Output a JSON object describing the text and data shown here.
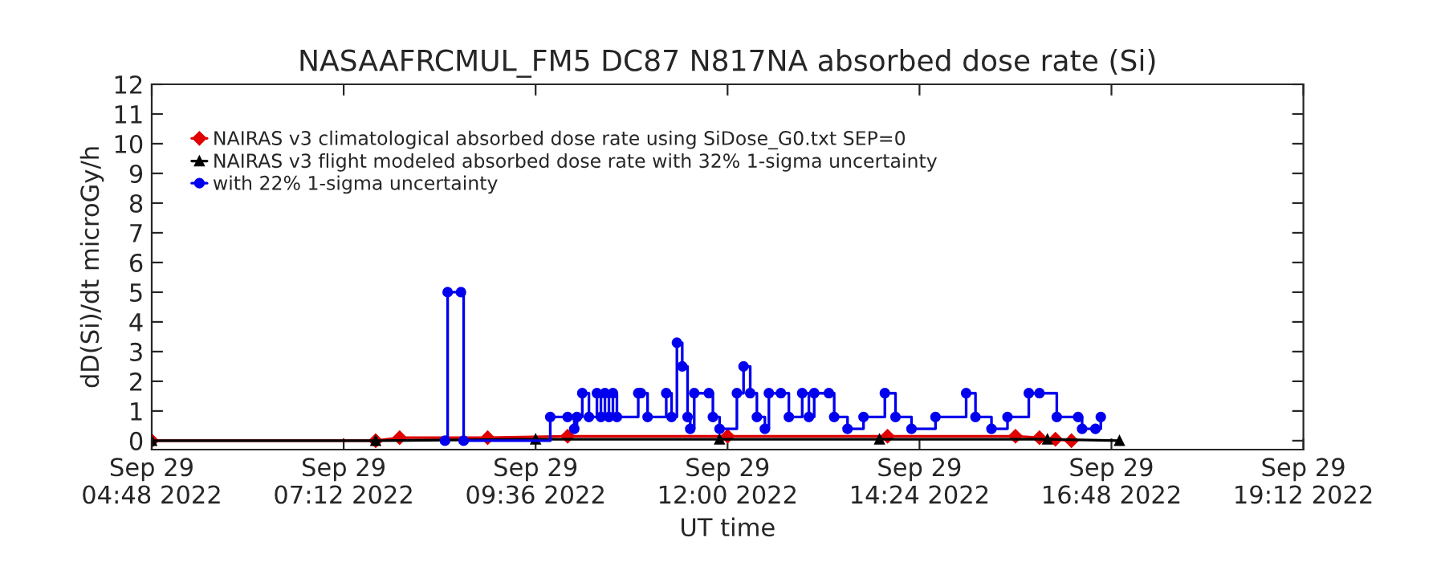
{
  "chart_data": {
    "type": "line",
    "title": "NASAAFRCMUL_FM5 DC87 N817NA absorbed dose rate (Si)",
    "xlabel": "UT time",
    "ylabel": "dD(Si)/dt microGy/h",
    "xlim": [
      "2022-09-29T04:48",
      "2022-09-29T19:12"
    ],
    "xticks": [
      {
        "value": "2022-09-29T04:48",
        "label": "Sep 29\n04:48 2022"
      },
      {
        "value": "2022-09-29T07:12",
        "label": "Sep 29\n07:12 2022"
      },
      {
        "value": "2022-09-29T09:36",
        "label": "Sep 29\n09:36 2022"
      },
      {
        "value": "2022-09-29T12:00",
        "label": "Sep 29\n12:00 2022"
      },
      {
        "value": "2022-09-29T14:24",
        "label": "Sep 29\n14:24 2022"
      },
      {
        "value": "2022-09-29T16:48",
        "label": "Sep 29\n16:48 2022"
      },
      {
        "value": "2022-09-29T19:12",
        "label": "Sep 29\n19:12 2022"
      }
    ],
    "ylim": [
      -0.3,
      12
    ],
    "yticks": [
      0,
      1,
      2,
      3,
      4,
      5,
      6,
      7,
      8,
      9,
      10,
      11,
      12
    ],
    "legend": "top left",
    "grid": false,
    "line_style": "solid",
    "series": [
      {
        "name": "NAIRAS v3 climatological absorbed dose rate using SiDose_G0.txt SEP=0",
        "color": "#e00000",
        "marker": "diamond",
        "x": [
          "2022-09-29T04:48",
          "2022-09-29T07:36",
          "2022-09-29T07:54",
          "2022-09-29T09:00",
          "2022-09-29T10:00",
          "2022-09-29T12:00",
          "2022-09-29T14:00",
          "2022-09-29T15:36",
          "2022-09-29T15:54",
          "2022-09-29T16:06",
          "2022-09-29T16:18"
        ],
        "values": [
          0,
          0,
          0.1,
          0.1,
          0.15,
          0.15,
          0.15,
          0.15,
          0.1,
          0.05,
          0
        ]
      },
      {
        "name": "NAIRAS v3 flight modeled absorbed dose rate with 32% 1-sigma uncertainty",
        "color": "#000000",
        "marker": "triangle",
        "x": [
          "2022-09-29T04:48",
          "2022-09-29T07:36",
          "2022-09-29T09:36",
          "2022-09-29T11:54",
          "2022-09-29T13:54",
          "2022-09-29T16:00",
          "2022-09-29T16:54"
        ],
        "values": [
          0,
          0,
          0.05,
          0.05,
          0.05,
          0.05,
          0
        ]
      },
      {
        "name": "with 22% 1-sigma uncertainty",
        "color": "#0000ee",
        "marker": "circle",
        "type": "step",
        "x": [
          "2022-09-29T08:28",
          "2022-09-29T08:30",
          "2022-09-29T08:40",
          "2022-09-29T08:42",
          "2022-09-29T09:47",
          "2022-09-29T10:00",
          "2022-09-29T10:05",
          "2022-09-29T10:07",
          "2022-09-29T10:11",
          "2022-09-29T10:16",
          "2022-09-29T10:22",
          "2022-09-29T10:25",
          "2022-09-29T10:28",
          "2022-09-29T10:31",
          "2022-09-29T10:34",
          "2022-09-29T10:37",
          "2022-09-29T10:53",
          "2022-09-29T10:55",
          "2022-09-29T11:00",
          "2022-09-29T11:14",
          "2022-09-29T11:18",
          "2022-09-29T11:22",
          "2022-09-29T11:26",
          "2022-09-29T11:30",
          "2022-09-29T11:32",
          "2022-09-29T11:35",
          "2022-09-29T11:46",
          "2022-09-29T11:49",
          "2022-09-29T11:54",
          "2022-09-29T12:07",
          "2022-09-29T12:12",
          "2022-09-29T12:17",
          "2022-09-29T12:22",
          "2022-09-29T12:28",
          "2022-09-29T12:31",
          "2022-09-29T12:40",
          "2022-09-29T12:46",
          "2022-09-29T12:56",
          "2022-09-29T13:01",
          "2022-09-29T13:05",
          "2022-09-29T13:16",
          "2022-09-29T13:20",
          "2022-09-29T13:30",
          "2022-09-29T13:42",
          "2022-09-29T13:58",
          "2022-09-29T14:06",
          "2022-09-29T14:18",
          "2022-09-29T14:36",
          "2022-09-29T14:59",
          "2022-09-29T15:06",
          "2022-09-29T15:18",
          "2022-09-29T15:30",
          "2022-09-29T15:46",
          "2022-09-29T15:54",
          "2022-09-29T16:07",
          "2022-09-29T16:23",
          "2022-09-29T16:26",
          "2022-09-29T16:36",
          "2022-09-29T16:40"
        ],
        "values": [
          0,
          5.0,
          5.0,
          0,
          0.8,
          0.8,
          0.4,
          0.8,
          1.6,
          0.8,
          1.6,
          0.8,
          1.6,
          0.8,
          1.6,
          0.8,
          1.6,
          1.6,
          0.8,
          1.6,
          0.8,
          3.3,
          2.5,
          0.8,
          0.4,
          1.6,
          1.6,
          0.8,
          0.4,
          1.6,
          2.5,
          1.6,
          0.8,
          0.4,
          1.6,
          1.6,
          0.8,
          1.6,
          0.8,
          1.6,
          1.6,
          0.8,
          0.4,
          0.8,
          1.6,
          0.8,
          0.4,
          0.8,
          1.6,
          0.8,
          0.4,
          0.8,
          1.6,
          1.6,
          0.8,
          0.8,
          0.4,
          0.4,
          0.8
        ]
      }
    ]
  }
}
